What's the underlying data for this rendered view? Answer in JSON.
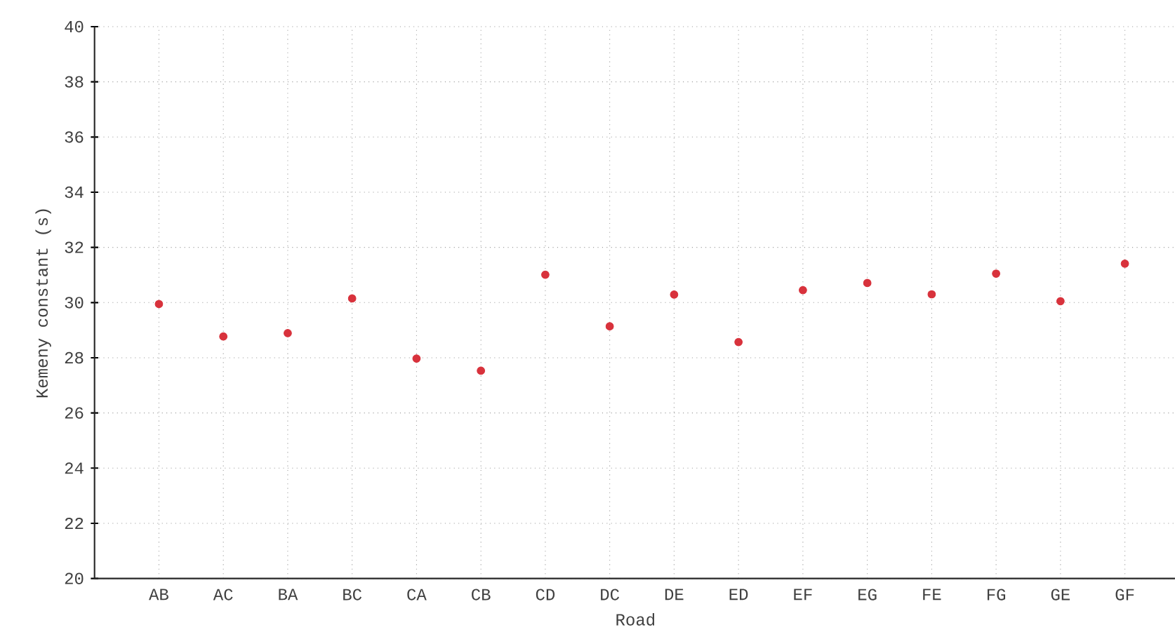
{
  "chart_data": {
    "type": "scatter",
    "xlabel": "Road",
    "ylabel": "Kemeny constant (s)",
    "categories": [
      "AB",
      "AC",
      "BA",
      "BC",
      "CA",
      "CB",
      "CD",
      "DC",
      "DE",
      "ED",
      "EF",
      "EG",
      "FE",
      "FG",
      "GE",
      "GF"
    ],
    "values": [
      29.95,
      28.77,
      28.89,
      30.15,
      27.97,
      27.53,
      31.01,
      29.14,
      30.29,
      28.57,
      30.45,
      30.71,
      30.3,
      31.05,
      30.05,
      31.41
    ],
    "color": "#d8323c",
    "ylim": [
      20,
      40
    ],
    "yticks": [
      20,
      22,
      24,
      26,
      28,
      30,
      32,
      34,
      36,
      38,
      40
    ],
    "grid": true
  }
}
